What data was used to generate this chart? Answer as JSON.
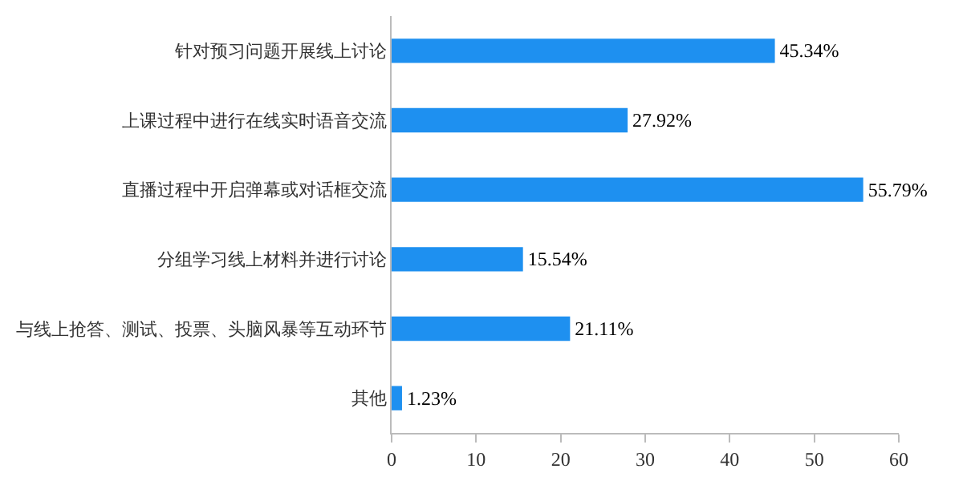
{
  "chart_data": {
    "type": "bar",
    "orientation": "horizontal",
    "categories": [
      "针对预习问题开展线上讨论",
      "上课过程中进行在线实时语音交流",
      "直播过程中开启弹幕或对话框交流",
      "分组学习线上材料并进行讨论",
      "与线上抢答、测试、投票、头脑风暴等互动环节",
      "其他"
    ],
    "values": [
      45.34,
      27.92,
      55.79,
      15.54,
      21.11,
      1.23
    ],
    "value_labels": [
      "45.34%",
      "27.92%",
      "55.79%",
      "15.54%",
      "21.11%",
      "1.23%"
    ],
    "color": "#1e90f0",
    "xlim": [
      0,
      60
    ],
    "xticks": [
      0,
      10,
      20,
      30,
      40,
      50,
      60
    ],
    "grid": false
  }
}
